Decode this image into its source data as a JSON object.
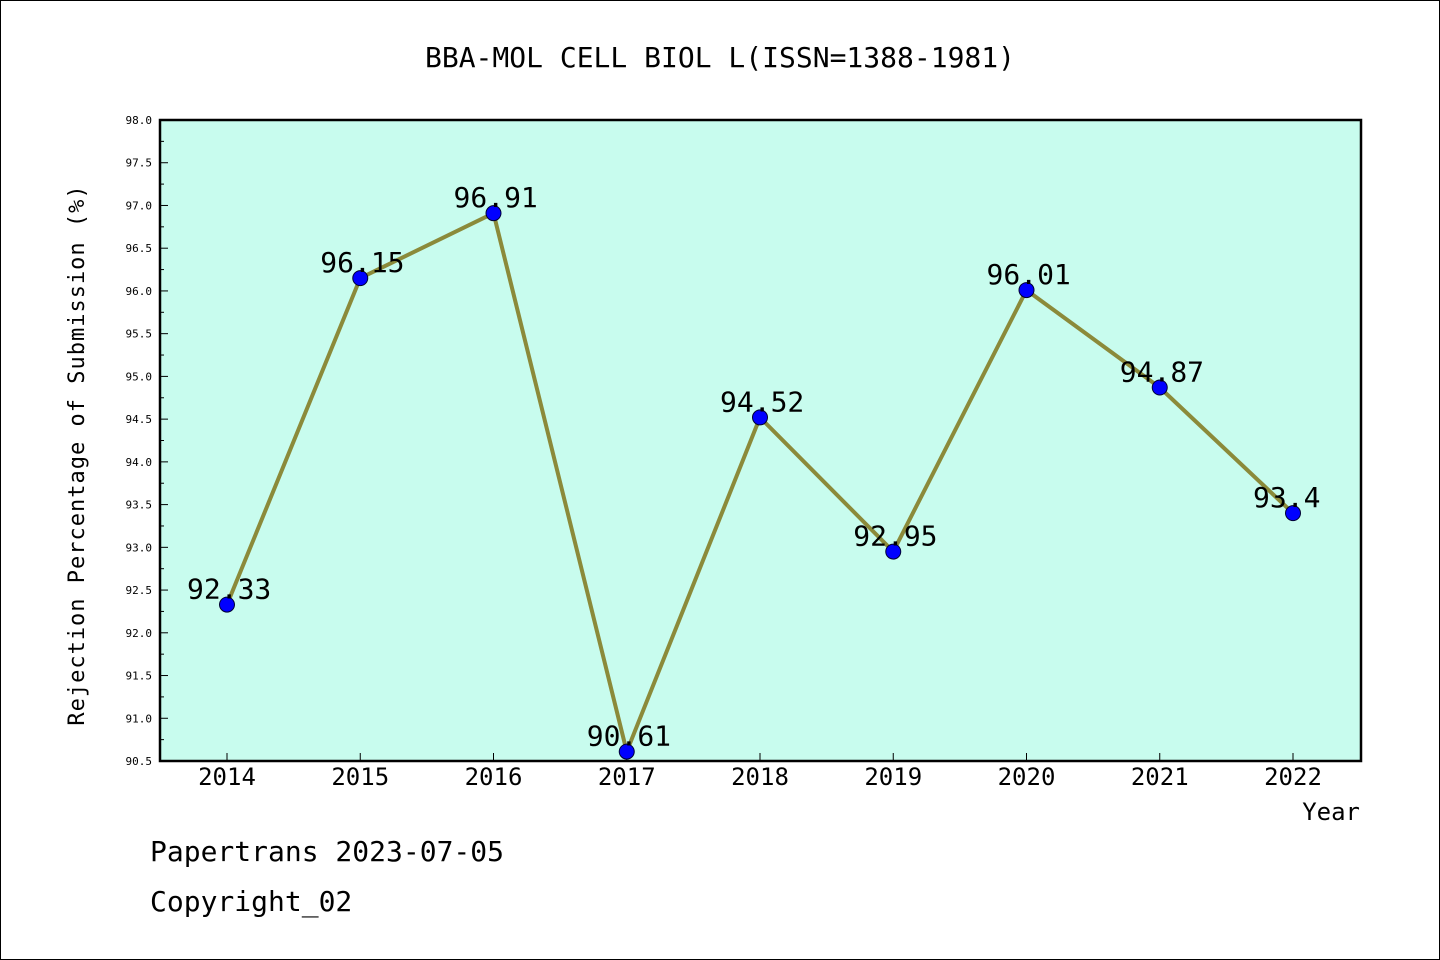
{
  "chart_data": {
    "type": "line",
    "title": "BBA-MOL CELL BIOL L(ISSN=1388-1981)",
    "xlabel": "Year",
    "ylabel": "Rejection Percentage of Submission (%)",
    "categories": [
      "2014",
      "2015",
      "2016",
      "2017",
      "2018",
      "2019",
      "2020",
      "2021",
      "2022"
    ],
    "values": [
      92.33,
      96.15,
      96.91,
      90.61,
      94.52,
      92.95,
      96.01,
      94.87,
      93.4
    ],
    "data_labels": [
      "92.33",
      "96.15",
      "96.91",
      "90.61",
      "94.52",
      "92.95",
      "96.01",
      "94.87",
      "93.4"
    ],
    "ylim": [
      90.5,
      98.0
    ],
    "yticks": [
      "90.5",
      "91.0",
      "91.5",
      "92.0",
      "92.5",
      "93.0",
      "93.5",
      "94.0",
      "94.5",
      "95.0",
      "95.5",
      "96.0",
      "96.5",
      "97.0",
      "97.5",
      "98.0"
    ],
    "grid": false,
    "colors": {
      "plot_background": "#c8fcee",
      "line": "#8b8a3a",
      "marker": "#0000ff"
    }
  },
  "footer": {
    "line1": "Papertrans 2023-07-05",
    "line2": "Copyright_02"
  }
}
